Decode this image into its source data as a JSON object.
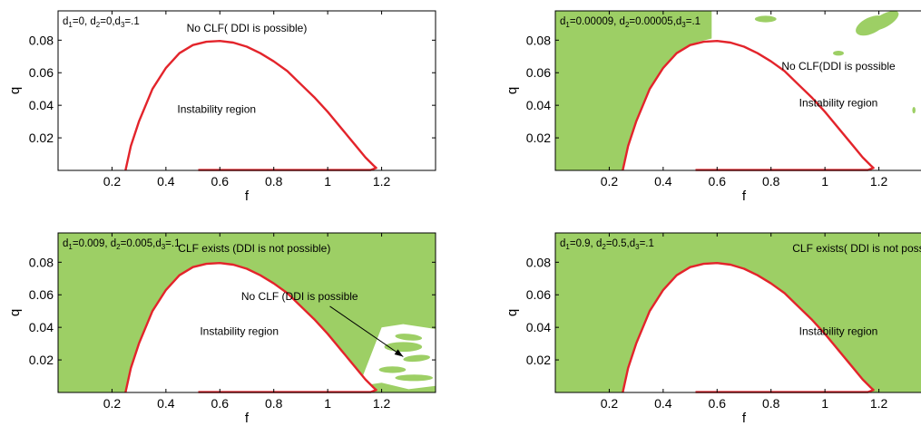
{
  "colors": {
    "stable_fill": "#9dcf65",
    "boundary": "#e3242b",
    "axes": "#000000",
    "background": "#ffffff"
  },
  "chart_data": [
    {
      "type": "area",
      "panel": "top-left",
      "params": {
        "d1": "0",
        "d2": "0",
        "d3": ".1"
      },
      "xlabel": "f",
      "ylabel": "q",
      "xlim": [
        0,
        1.4
      ],
      "ylim": [
        0,
        0.098
      ],
      "xticks": [
        "0.2",
        "0.4",
        "0.6",
        "0.8",
        "1",
        "1.2"
      ],
      "yticks": [
        "0.02",
        "0.04",
        "0.06",
        "0.08"
      ],
      "annotations": [
        "No CLF( DDI is possible)",
        "Instability region"
      ],
      "fill": "none",
      "boundary": {
        "x": [
          0.25,
          0.27,
          0.3,
          0.35,
          0.4,
          0.45,
          0.5,
          0.55,
          0.6,
          0.65,
          0.7,
          0.75,
          0.8,
          0.85,
          0.9,
          0.95,
          1.0,
          1.05,
          1.1,
          1.14,
          1.17,
          1.18,
          1.16,
          1.1,
          1.0,
          0.8,
          0.6,
          0.52
        ],
        "y": [
          0.0,
          0.015,
          0.03,
          0.05,
          0.063,
          0.072,
          0.077,
          0.079,
          0.0795,
          0.0785,
          0.076,
          0.072,
          0.067,
          0.061,
          0.053,
          0.045,
          0.036,
          0.026,
          0.016,
          0.008,
          0.003,
          0.0015,
          0.0003,
          0.0002,
          0.0002,
          0.0002,
          0.0002,
          0.0002
        ]
      }
    },
    {
      "type": "area",
      "panel": "top-right",
      "params": {
        "d1": "0.00009",
        "d2": "0.00005",
        "d3": ".1"
      },
      "xlabel": "f",
      "ylabel": "q",
      "xlim": [
        0,
        1.4
      ],
      "ylim": [
        0,
        0.098
      ],
      "xticks": [
        "0.2",
        "0.4",
        "0.6",
        "0.8",
        "1",
        "1.2"
      ],
      "yticks": [
        "0.02",
        "0.04",
        "0.06",
        "0.08"
      ],
      "annotations": [
        "No CLF(DDI is possible",
        "Instability region"
      ],
      "fill": "left-wedge",
      "boundary": {
        "x": [
          0.25,
          0.27,
          0.3,
          0.35,
          0.4,
          0.45,
          0.5,
          0.55,
          0.6,
          0.65,
          0.7,
          0.75,
          0.8,
          0.85,
          0.9,
          0.95,
          1.0,
          1.05,
          1.1,
          1.14,
          1.17,
          1.18,
          1.16,
          1.1,
          1.0,
          0.8,
          0.6,
          0.52
        ],
        "y": [
          0.0,
          0.015,
          0.03,
          0.05,
          0.063,
          0.072,
          0.077,
          0.079,
          0.0795,
          0.0785,
          0.076,
          0.072,
          0.067,
          0.061,
          0.053,
          0.045,
          0.036,
          0.026,
          0.016,
          0.008,
          0.003,
          0.0015,
          0.0003,
          0.0002,
          0.0002,
          0.0002,
          0.0002,
          0.0002
        ]
      }
    },
    {
      "type": "area",
      "panel": "bottom-left",
      "params": {
        "d1": "0.009",
        "d2": "0.005",
        "d3": ".1"
      },
      "xlabel": "f",
      "ylabel": "q",
      "xlim": [
        0,
        1.4
      ],
      "ylim": [
        0,
        0.098
      ],
      "xticks": [
        "0.2",
        "0.4",
        "0.6",
        "0.8",
        "1",
        "1.2"
      ],
      "yticks": [
        "0.02",
        "0.04",
        "0.06",
        "0.08"
      ],
      "annotations": [
        "CLF exists (DDI is not possible)",
        "No CLF (DDI is possible",
        "Instability region"
      ],
      "fill": "all-with-holes",
      "boundary": {
        "x": [
          0.25,
          0.27,
          0.3,
          0.35,
          0.4,
          0.45,
          0.5,
          0.55,
          0.6,
          0.65,
          0.7,
          0.75,
          0.8,
          0.85,
          0.9,
          0.95,
          1.0,
          1.05,
          1.1,
          1.14,
          1.17,
          1.18,
          1.16,
          1.1,
          1.0,
          0.8,
          0.6,
          0.52
        ],
        "y": [
          0.0,
          0.015,
          0.03,
          0.05,
          0.063,
          0.072,
          0.077,
          0.079,
          0.0795,
          0.0785,
          0.076,
          0.072,
          0.067,
          0.061,
          0.053,
          0.045,
          0.036,
          0.026,
          0.016,
          0.008,
          0.003,
          0.0015,
          0.0003,
          0.0002,
          0.0002,
          0.0002,
          0.0002,
          0.0002
        ]
      }
    },
    {
      "type": "area",
      "panel": "bottom-right",
      "params": {
        "d1": "0.9",
        "d2": "0.5",
        "d3": ".1"
      },
      "xlabel": "f",
      "ylabel": "q",
      "xlim": [
        0,
        1.4
      ],
      "ylim": [
        0,
        0.098
      ],
      "xticks": [
        "0.2",
        "0.4",
        "0.6",
        "0.8",
        "1",
        "1.2"
      ],
      "yticks": [
        "0.02",
        "0.04",
        "0.06",
        "0.08"
      ],
      "annotations": [
        "CLF exists( DDI is not possible)",
        "Instability region"
      ],
      "fill": "all",
      "boundary": {
        "x": [
          0.25,
          0.27,
          0.3,
          0.35,
          0.4,
          0.45,
          0.5,
          0.55,
          0.6,
          0.65,
          0.7,
          0.75,
          0.8,
          0.85,
          0.9,
          0.95,
          1.0,
          1.05,
          1.1,
          1.14,
          1.17,
          1.18,
          1.16,
          1.1,
          1.0,
          0.8,
          0.6,
          0.52
        ],
        "y": [
          0.0,
          0.015,
          0.03,
          0.05,
          0.063,
          0.072,
          0.077,
          0.079,
          0.0795,
          0.0785,
          0.076,
          0.072,
          0.067,
          0.061,
          0.053,
          0.045,
          0.036,
          0.026,
          0.016,
          0.008,
          0.003,
          0.0015,
          0.0003,
          0.0002,
          0.0002,
          0.0002,
          0.0002,
          0.0002
        ]
      }
    }
  ]
}
